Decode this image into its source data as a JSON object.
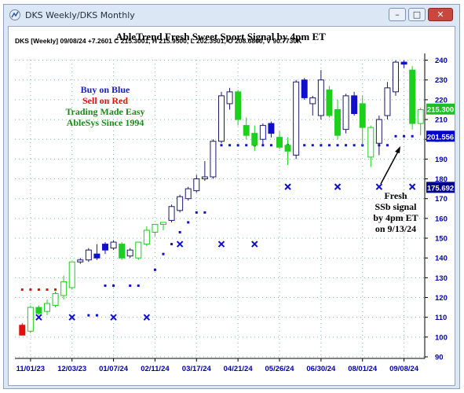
{
  "window": {
    "title": "DKS Weekly/DKS Monthly",
    "buttons": [
      "–",
      "□",
      "✕"
    ]
  },
  "chart_data": {
    "type": "candlestick",
    "title": "AbleTrend Fresh Sweet Sport Signal by 4pm ET",
    "info_line": "DKS [Weekly] 09/08/24 +7.2601 C 215.3001, H 215.9500, L 202.3501, O 208.6800, V 90.7730K",
    "legend_lines": [
      {
        "text": "Buy on Blue",
        "color": "#1a1ac8"
      },
      {
        "text": "Sell on Red",
        "color": "#e01010"
      },
      {
        "text": "Trading Made Easy",
        "color": "#1a8a1a"
      },
      {
        "text": "AbleSys Since 1994",
        "color": "#1a8a1a"
      }
    ],
    "annotation": [
      "Fresh",
      "SSb signal",
      "by 4pm ET",
      "on 9/13/24"
    ],
    "y_axis": {
      "min": 90,
      "max": 245,
      "ticks": [
        90,
        100,
        110,
        120,
        130,
        140,
        150,
        160,
        170,
        180,
        190,
        200,
        210,
        220,
        230,
        240
      ]
    },
    "x_tick_labels": [
      "11/01/23",
      "12/03/23",
      "01/07/24",
      "02/11/24",
      "03/17/24",
      "04/21/24",
      "05/26/24",
      "06/30/24",
      "08/01/24",
      "09/08/24"
    ],
    "x_tick_index": [
      1,
      6,
      11,
      16,
      21,
      26,
      31,
      36,
      41,
      46
    ],
    "price_labels": [
      {
        "value": 215.3,
        "text": "215.300",
        "bg": "#1fbf1f",
        "fg": "#ffffff"
      },
      {
        "value": 201.556,
        "text": "201.556",
        "bg": "#0000cc",
        "fg": "#ffffff"
      },
      {
        "value": 175.692,
        "text": "175.692",
        "bg": "#000088",
        "fg": "#ffffff"
      }
    ],
    "colors": {
      "blue": "#1010cc",
      "red": "#e01010",
      "green": "#1ecf1e",
      "grid": "#7fb8ad"
    },
    "candles": [
      {
        "o": 106,
        "h": 107,
        "l": 101,
        "c": 101,
        "color": "red"
      },
      {
        "o": 103,
        "h": 116,
        "l": 102,
        "c": 115,
        "color": "green_hollow"
      },
      {
        "o": 112,
        "h": 116,
        "l": 111,
        "c": 115,
        "color": "green"
      },
      {
        "o": 113,
        "h": 119,
        "l": 111,
        "c": 117,
        "color": "green_hollow"
      },
      {
        "o": 116,
        "h": 123,
        "l": 115,
        "c": 122,
        "color": "green_hollow"
      },
      {
        "o": 121,
        "h": 131,
        "l": 119,
        "c": 128,
        "color": "green_hollow"
      },
      {
        "o": 125,
        "h": 138,
        "l": 124,
        "c": 138,
        "color": "green_hollow"
      },
      {
        "o": 138,
        "h": 140,
        "l": 137,
        "c": 139,
        "color": "hollow"
      },
      {
        "o": 139,
        "h": 145,
        "l": 138,
        "c": 144,
        "color": "hollow"
      },
      {
        "o": 142,
        "h": 147,
        "l": 139,
        "c": 140,
        "color": "blue"
      },
      {
        "o": 144,
        "h": 148,
        "l": 142,
        "c": 147,
        "color": "blue"
      },
      {
        "o": 145,
        "h": 149,
        "l": 144,
        "c": 148,
        "color": "hollow"
      },
      {
        "o": 147,
        "h": 148,
        "l": 139,
        "c": 140,
        "color": "green"
      },
      {
        "o": 141,
        "h": 145,
        "l": 140,
        "c": 144,
        "color": "hollow"
      },
      {
        "o": 140,
        "h": 148,
        "l": 139,
        "c": 148,
        "color": "green_hollow"
      },
      {
        "o": 147,
        "h": 156,
        "l": 146,
        "c": 154,
        "color": "green_hollow"
      },
      {
        "o": 153,
        "h": 157,
        "l": 151,
        "c": 157,
        "color": "green_hollow"
      },
      {
        "o": 157,
        "h": 158,
        "l": 154,
        "c": 158,
        "color": "green_hollow"
      },
      {
        "o": 159,
        "h": 167,
        "l": 158,
        "c": 166,
        "color": "hollow"
      },
      {
        "o": 164,
        "h": 172,
        "l": 163,
        "c": 171,
        "color": "hollow"
      },
      {
        "o": 170,
        "h": 176,
        "l": 169,
        "c": 175,
        "color": "hollow"
      },
      {
        "o": 174,
        "h": 182,
        "l": 173,
        "c": 180,
        "color": "hollow"
      },
      {
        "o": 180,
        "h": 189,
        "l": 179,
        "c": 181,
        "color": "hollow"
      },
      {
        "o": 181,
        "h": 200,
        "l": 180,
        "c": 199,
        "color": "hollow"
      },
      {
        "o": 199,
        "h": 224,
        "l": 198,
        "c": 222,
        "color": "hollow"
      },
      {
        "o": 218,
        "h": 226,
        "l": 215,
        "c": 224,
        "color": "hollow"
      },
      {
        "o": 224,
        "h": 225,
        "l": 207,
        "c": 210,
        "color": "green"
      },
      {
        "o": 207,
        "h": 211,
        "l": 200,
        "c": 202,
        "color": "green"
      },
      {
        "o": 203,
        "h": 207,
        "l": 194,
        "c": 197,
        "color": "green"
      },
      {
        "o": 200,
        "h": 208,
        "l": 197,
        "c": 207,
        "color": "blue_hollow"
      },
      {
        "o": 208,
        "h": 209,
        "l": 201,
        "c": 203,
        "color": "blue"
      },
      {
        "o": 201,
        "h": 204,
        "l": 195,
        "c": 196,
        "color": "green"
      },
      {
        "o": 197,
        "h": 201,
        "l": 187,
        "c": 194,
        "color": "green"
      },
      {
        "o": 192,
        "h": 230,
        "l": 190,
        "c": 229,
        "color": "hollow"
      },
      {
        "o": 230,
        "h": 231,
        "l": 220,
        "c": 221,
        "color": "blue"
      },
      {
        "o": 221,
        "h": 222,
        "l": 212,
        "c": 218,
        "color": "hollow"
      },
      {
        "o": 212,
        "h": 235,
        "l": 210,
        "c": 230,
        "color": "hollow"
      },
      {
        "o": 225,
        "h": 227,
        "l": 211,
        "c": 212,
        "color": "green"
      },
      {
        "o": 215,
        "h": 220,
        "l": 200,
        "c": 202,
        "color": "green"
      },
      {
        "o": 205,
        "h": 223,
        "l": 203,
        "c": 222,
        "color": "hollow"
      },
      {
        "o": 222,
        "h": 224,
        "l": 212,
        "c": 213,
        "color": "blue"
      },
      {
        "o": 218,
        "h": 222,
        "l": 197,
        "c": 206,
        "color": "green"
      },
      {
        "o": 206,
        "h": 207,
        "l": 186,
        "c": 191,
        "color": "green_hollow"
      },
      {
        "o": 198,
        "h": 212,
        "l": 192,
        "c": 210,
        "color": "hollow"
      },
      {
        "o": 212,
        "h": 229,
        "l": 210,
        "c": 226,
        "color": "hollow"
      },
      {
        "o": 224,
        "h": 240,
        "l": 222,
        "c": 239,
        "color": "hollow"
      },
      {
        "o": 238,
        "h": 240,
        "l": 236,
        "c": 239,
        "color": "blue"
      },
      {
        "o": 235,
        "h": 237,
        "l": 205,
        "c": 208,
        "color": "green"
      },
      {
        "o": 208,
        "h": 216,
        "l": 202,
        "c": 215,
        "color": "green_hollow"
      }
    ],
    "stop_dots": [
      {
        "i": 0,
        "y": 124,
        "color": "red"
      },
      {
        "i": 1,
        "y": 124,
        "color": "red"
      },
      {
        "i": 2,
        "y": 124,
        "color": "red"
      },
      {
        "i": 3,
        "y": 124,
        "color": "red"
      },
      {
        "i": 4,
        "y": 124,
        "color": "red"
      },
      {
        "i": 5,
        "y": 124,
        "color": "red"
      },
      {
        "i": 8,
        "y": 111,
        "color": "blue"
      },
      {
        "i": 9,
        "y": 111,
        "color": "blue"
      },
      {
        "i": 10,
        "y": 126,
        "color": "blue"
      },
      {
        "i": 11,
        "y": 126,
        "color": "blue"
      },
      {
        "i": 13,
        "y": 126,
        "color": "blue"
      },
      {
        "i": 14,
        "y": 126,
        "color": "blue"
      },
      {
        "i": 16,
        "y": 134,
        "color": "blue"
      },
      {
        "i": 17,
        "y": 142,
        "color": "blue"
      },
      {
        "i": 18,
        "y": 147,
        "color": "blue"
      },
      {
        "i": 19,
        "y": 153,
        "color": "blue"
      },
      {
        "i": 20,
        "y": 158,
        "color": "blue"
      },
      {
        "i": 21,
        "y": 163,
        "color": "blue"
      },
      {
        "i": 22,
        "y": 163,
        "color": "blue"
      },
      {
        "i": 23,
        "y": 187,
        "color": "blue"
      },
      {
        "i": 24,
        "y": 197,
        "color": "blue"
      },
      {
        "i": 25,
        "y": 197,
        "color": "blue"
      },
      {
        "i": 26,
        "y": 197,
        "color": "blue"
      },
      {
        "i": 27,
        "y": 197,
        "color": "blue"
      },
      {
        "i": 28,
        "y": 197,
        "color": "blue"
      },
      {
        "i": 29,
        "y": 197,
        "color": "blue"
      },
      {
        "i": 30,
        "y": 197,
        "color": "blue"
      },
      {
        "i": 31,
        "y": 197,
        "color": "blue"
      },
      {
        "i": 32,
        "y": 197,
        "color": "blue"
      },
      {
        "i": 33,
        "y": 197,
        "color": "blue"
      },
      {
        "i": 34,
        "y": 197,
        "color": "blue"
      },
      {
        "i": 35,
        "y": 197,
        "color": "blue"
      },
      {
        "i": 36,
        "y": 197,
        "color": "blue"
      },
      {
        "i": 37,
        "y": 197,
        "color": "blue"
      },
      {
        "i": 38,
        "y": 197,
        "color": "blue"
      },
      {
        "i": 39,
        "y": 197,
        "color": "blue"
      },
      {
        "i": 40,
        "y": 197,
        "color": "blue"
      },
      {
        "i": 41,
        "y": 197,
        "color": "blue"
      },
      {
        "i": 42,
        "y": 197,
        "color": "blue"
      },
      {
        "i": 43,
        "y": 197,
        "color": "blue"
      },
      {
        "i": 44,
        "y": 197,
        "color": "blue"
      },
      {
        "i": 45,
        "y": 201.556,
        "color": "blue"
      },
      {
        "i": 46,
        "y": 201.556,
        "color": "blue"
      },
      {
        "i": 47,
        "y": 201.556,
        "color": "blue"
      }
    ],
    "x_marks": [
      {
        "i": 2,
        "y": 110
      },
      {
        "i": 6,
        "y": 110
      },
      {
        "i": 11,
        "y": 110
      },
      {
        "i": 15,
        "y": 110
      },
      {
        "i": 19,
        "y": 147
      },
      {
        "i": 24,
        "y": 147
      },
      {
        "i": 28,
        "y": 147
      },
      {
        "i": 32,
        "y": 176
      },
      {
        "i": 38,
        "y": 176
      },
      {
        "i": 43,
        "y": 176
      },
      {
        "i": 47,
        "y": 176
      }
    ]
  }
}
